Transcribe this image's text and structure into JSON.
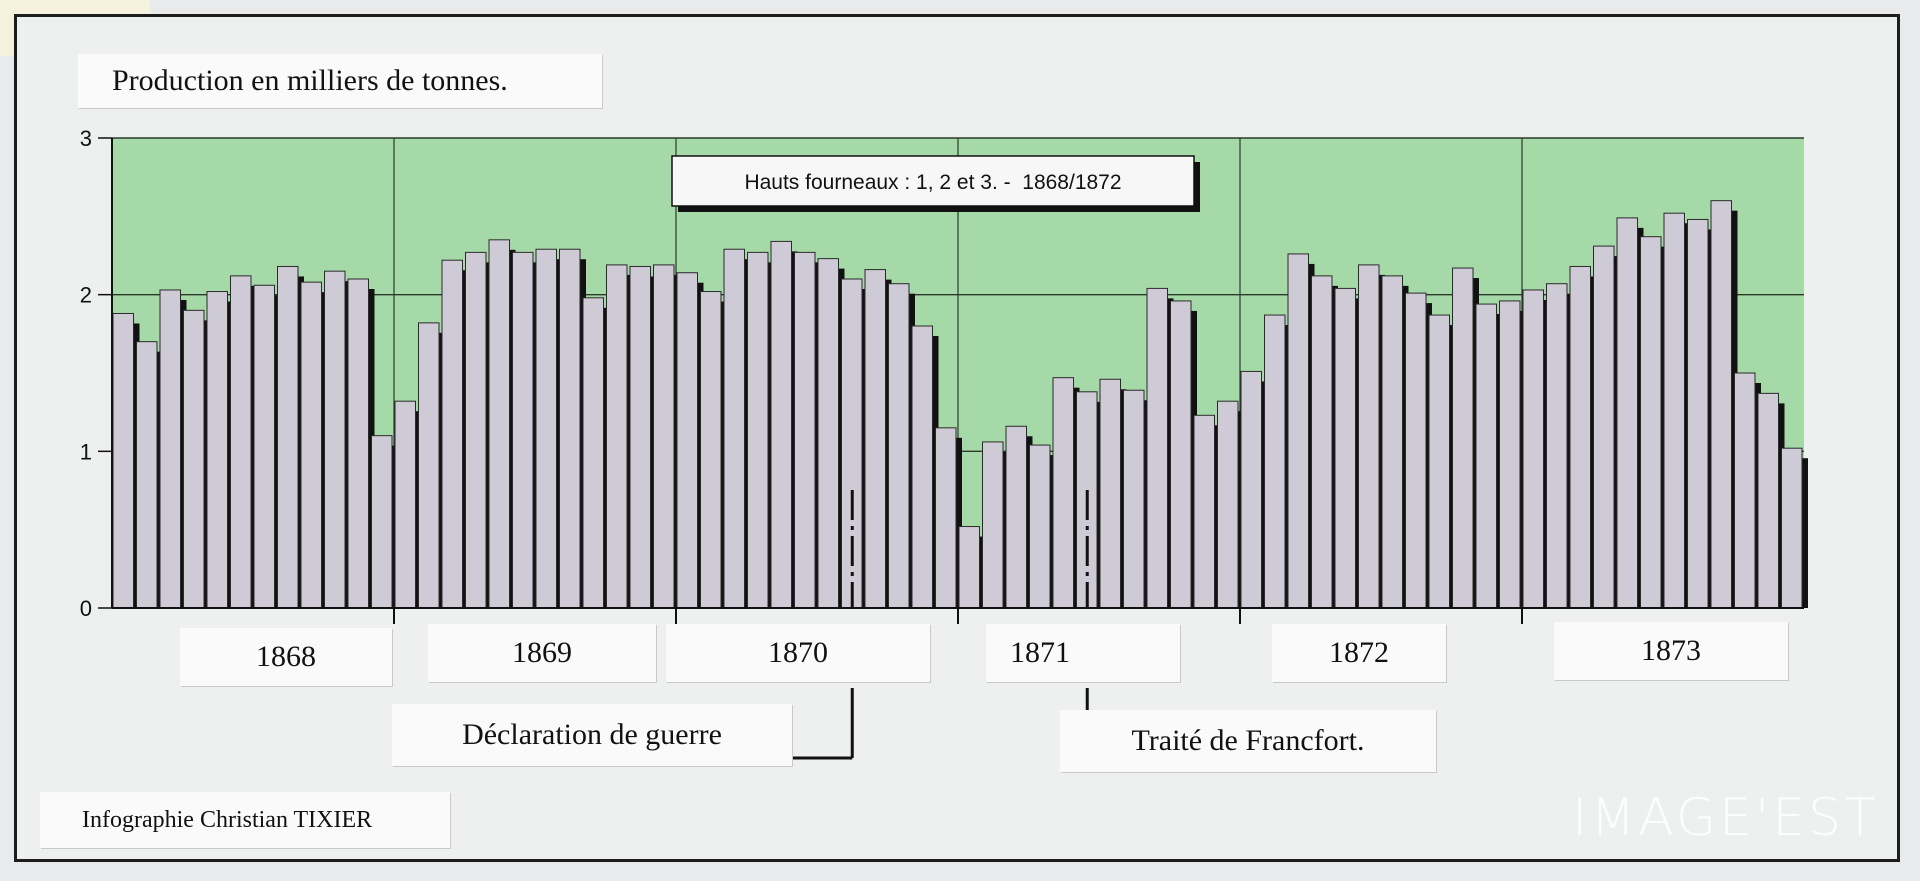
{
  "unit_label": "Production en milliers de tonnes.",
  "credit": "Infographie Christian TIXIER",
  "source_tag": "C6TIX",
  "watermark": "IMAGE'EST",
  "colors": {
    "plot_bg": "#a6d9a8",
    "bar_fill": "#cfcbd6",
    "bar_stroke": "#2a2a2a",
    "shadow": "#111111",
    "grid": "#2a3a2a"
  },
  "years": [
    "1868",
    "1869",
    "1870",
    "1871",
    "1872",
    "1873"
  ],
  "events": [
    "Déclaration de guerre",
    "Traité de Francfort."
  ],
  "chart_data": {
    "type": "bar",
    "title": "Hauts fourneaux : 1, 2 et 3. -  1868/1872",
    "ylabel": "Production en milliers de tonnes.",
    "ylim": [
      0,
      3
    ],
    "yticks": [
      "0",
      "1",
      "2",
      "3"
    ],
    "grid": true,
    "categories": [
      "1868-01",
      "1868-02",
      "1868-03",
      "1868-04",
      "1868-05",
      "1868-06",
      "1868-07",
      "1868-08",
      "1868-09",
      "1868-10",
      "1868-11",
      "1868-12",
      "1869-01",
      "1869-02",
      "1869-03",
      "1869-04",
      "1869-05",
      "1869-06",
      "1869-07",
      "1869-08",
      "1869-09",
      "1869-10",
      "1869-11",
      "1869-12",
      "1870-01",
      "1870-02",
      "1870-03",
      "1870-04",
      "1870-05",
      "1870-06",
      "1870-07",
      "1870-08",
      "1870-09",
      "1870-10",
      "1870-11",
      "1870-12",
      "1871-01",
      "1871-02",
      "1871-03",
      "1871-04",
      "1871-05",
      "1871-06",
      "1871-07",
      "1871-08",
      "1871-09",
      "1871-10",
      "1871-11",
      "1871-12",
      "1872-01",
      "1872-02",
      "1872-03",
      "1872-04",
      "1872-05",
      "1872-06",
      "1872-07",
      "1872-08",
      "1872-09",
      "1872-10",
      "1872-11",
      "1872-12",
      "1873-01",
      "1873-02",
      "1873-03",
      "1873-04",
      "1873-05",
      "1873-06",
      "1873-07",
      "1873-08",
      "1873-09",
      "1873-10",
      "1873-11",
      "1873-12"
    ],
    "values": [
      1.88,
      1.7,
      2.03,
      1.9,
      2.02,
      2.12,
      2.06,
      2.18,
      2.08,
      2.15,
      2.1,
      1.1,
      1.32,
      1.82,
      2.22,
      2.27,
      2.35,
      2.27,
      2.29,
      2.29,
      1.98,
      2.19,
      2.18,
      2.19,
      2.14,
      2.02,
      2.29,
      2.27,
      2.34,
      2.27,
      2.23,
      2.1,
      2.16,
      2.07,
      1.8,
      1.15,
      0.52,
      1.06,
      1.16,
      1.04,
      1.47,
      1.38,
      1.46,
      1.39,
      2.04,
      1.96,
      1.23,
      1.32,
      1.51,
      1.87,
      2.26,
      2.12,
      2.04,
      2.19,
      2.12,
      2.01,
      1.87,
      2.17,
      1.94,
      1.96,
      2.03,
      2.07,
      2.18,
      2.31,
      2.49,
      2.37,
      2.52,
      2.48,
      2.6,
      1.5,
      1.37,
      1.02
    ]
  }
}
